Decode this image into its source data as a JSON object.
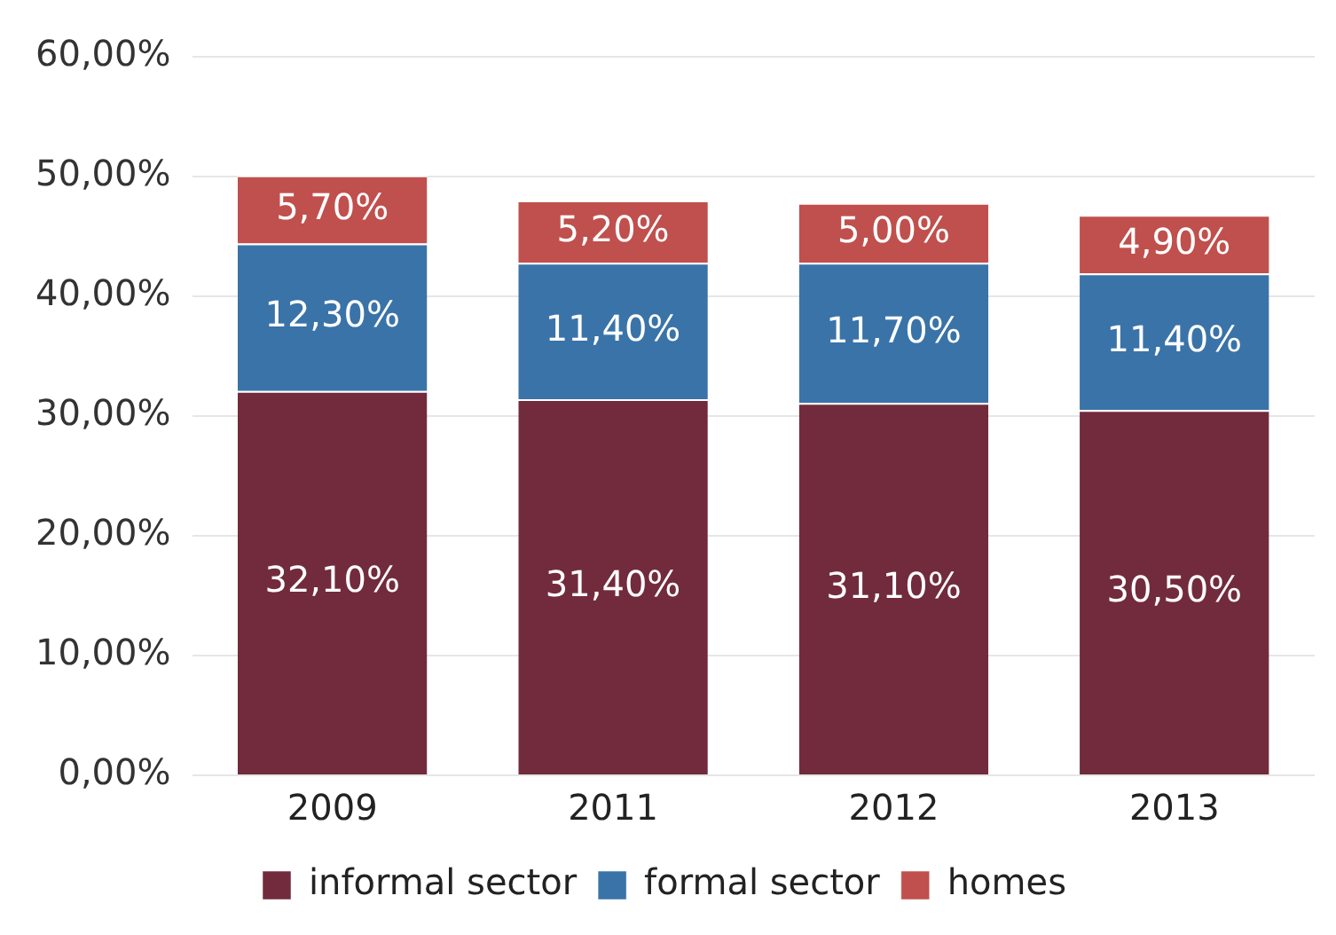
{
  "chart_data": {
    "type": "bar",
    "stacked": true,
    "categories": [
      "2009",
      "2011",
      "2012",
      "2013"
    ],
    "series": [
      {
        "name": "informal sector",
        "color": "#722b3c",
        "values": [
          32.1,
          31.4,
          31.1,
          30.5
        ],
        "value_labels": [
          "32,10%",
          "31,40%",
          "31,10%",
          "30,50%"
        ]
      },
      {
        "name": "formal sector",
        "color": "#3a73a8",
        "values": [
          12.3,
          11.4,
          11.7,
          11.4
        ],
        "value_labels": [
          "12,30%",
          "11,40%",
          "11,70%",
          "11,40%"
        ]
      },
      {
        "name": "homes",
        "color": "#c0504d",
        "values": [
          5.7,
          5.2,
          5.0,
          4.9
        ],
        "value_labels": [
          "5,70%",
          "5,20%",
          "5,00%",
          "4,90%"
        ]
      }
    ],
    "ylim": [
      0,
      60
    ],
    "yticks": [
      {
        "value": 0,
        "label": "0,00%"
      },
      {
        "value": 10,
        "label": "10,00%"
      },
      {
        "value": 20,
        "label": "20,00%"
      },
      {
        "value": 30,
        "label": "30,00%"
      },
      {
        "value": 40,
        "label": "40,00%"
      },
      {
        "value": 50,
        "label": "50,00%"
      },
      {
        "value": 60,
        "label": "60,00%"
      }
    ],
    "grid": "y",
    "legend": "bottom"
  }
}
